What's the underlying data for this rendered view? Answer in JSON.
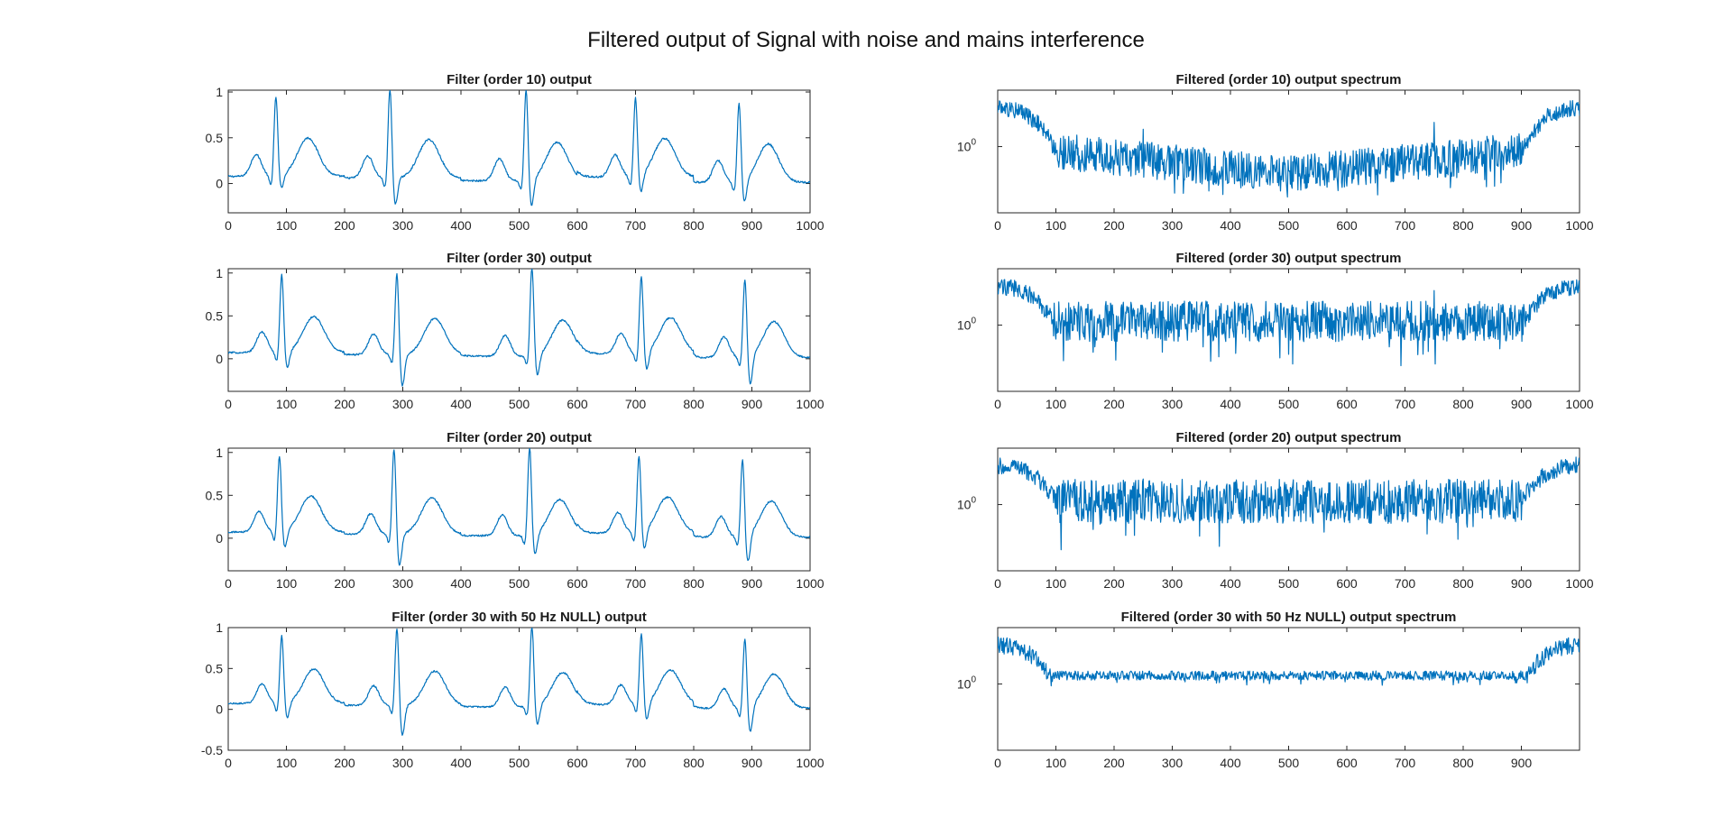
{
  "figure": {
    "title": "Filtered output of Signal with noise and mains interference"
  },
  "style": {
    "line_color": "#0072BD",
    "axis_color": "#262626",
    "background": "#ffffff"
  },
  "chart_data": [
    {
      "type": "line",
      "title": "Filter (order 10) output",
      "xlim": [
        0,
        1000
      ],
      "ylim": [
        -0.32,
        1.02
      ],
      "xticks": [
        0,
        100,
        200,
        300,
        400,
        500,
        600,
        700,
        800,
        900,
        1000
      ],
      "yticks": [
        0,
        0.5,
        1
      ],
      "ytick_labels": [
        "0",
        "0.5",
        "1"
      ],
      "beats": [
        {
          "r": 82,
          "amp": 0.88,
          "s": -0.15
        },
        {
          "r": 278,
          "amp": 0.99,
          "s": -0.3
        },
        {
          "r": 512,
          "amp": 1.02,
          "s": -0.3
        },
        {
          "r": 700,
          "amp": 0.87,
          "s": -0.2
        },
        {
          "r": 878,
          "amp": 0.87,
          "s": -0.25
        }
      ],
      "p_waves": [
        48,
        240,
        466,
        665,
        842
      ],
      "t_waves": [
        137,
        345,
        565,
        750,
        928
      ],
      "baseline": [
        0.13,
        0.1,
        0.05,
        0.12,
        0.02
      ]
    },
    {
      "type": "line",
      "title": "Filtered (order 10) output spectrum",
      "yscale": "log",
      "xlim": [
        0,
        1000
      ],
      "xticks": [
        0,
        100,
        200,
        300,
        400,
        500,
        600,
        700,
        800,
        900,
        1000
      ],
      "ytick_labels": [
        "10",
        "0"
      ],
      "spectrum": {
        "passband_edge": 100,
        "stop_level": 0.55,
        "bowl_depth": 0.35,
        "noise": 0.2,
        "spikes": [
          250,
          750
        ]
      }
    },
    {
      "type": "line",
      "title": "Filter (order 30) output",
      "xlim": [
        0,
        1000
      ],
      "ylim": [
        -0.38,
        1.05
      ],
      "xticks": [
        0,
        100,
        200,
        300,
        400,
        500,
        600,
        700,
        800,
        900,
        1000
      ],
      "yticks": [
        0,
        0.5,
        1
      ],
      "ytick_labels": [
        "0",
        "0.5",
        "1"
      ],
      "beats": [
        {
          "r": 92,
          "amp": 0.92,
          "s": -0.2
        },
        {
          "r": 290,
          "amp": 0.97,
          "s": -0.38
        },
        {
          "r": 522,
          "amp": 1.05,
          "s": -0.25
        },
        {
          "r": 710,
          "amp": 0.9,
          "s": -0.22
        },
        {
          "r": 888,
          "amp": 0.93,
          "s": -0.35
        }
      ],
      "p_waves": [
        58,
        250,
        476,
        675,
        852
      ],
      "t_waves": [
        147,
        355,
        575,
        760,
        938
      ],
      "baseline": [
        0.12,
        0.08,
        0.05,
        0.1,
        0.02
      ]
    },
    {
      "type": "line",
      "title": "Filtered (order 30) output spectrum",
      "yscale": "log",
      "xlim": [
        0,
        1000
      ],
      "xticks": [
        0,
        100,
        200,
        300,
        400,
        500,
        600,
        700,
        800,
        900,
        1000
      ],
      "ytick_labels": [
        "10",
        "0"
      ],
      "spectrum": {
        "passband_edge": 95,
        "stop_level": 0.62,
        "bowl_depth": 0.0,
        "noise": 0.22,
        "spikes": [
          250,
          750
        ]
      }
    },
    {
      "type": "line",
      "title": "Filter (order 20) output",
      "xlim": [
        0,
        1000
      ],
      "ylim": [
        -0.38,
        1.05
      ],
      "xticks": [
        0,
        100,
        200,
        300,
        400,
        500,
        600,
        700,
        800,
        900,
        1000
      ],
      "yticks": [
        0,
        0.5,
        1
      ],
      "ytick_labels": [
        "0",
        "0.5",
        "1"
      ],
      "beats": [
        {
          "r": 88,
          "amp": 0.9,
          "s": -0.2
        },
        {
          "r": 285,
          "amp": 1.02,
          "s": -0.38
        },
        {
          "r": 518,
          "amp": 1.04,
          "s": -0.25
        },
        {
          "r": 706,
          "amp": 0.9,
          "s": -0.22
        },
        {
          "r": 884,
          "amp": 0.92,
          "s": -0.33
        }
      ],
      "p_waves": [
        53,
        245,
        471,
        670,
        847
      ],
      "t_waves": [
        142,
        350,
        570,
        755,
        933
      ],
      "baseline": [
        0.12,
        0.08,
        0.05,
        0.1,
        0.02
      ]
    },
    {
      "type": "line",
      "title": "Filtered (order 20) output spectrum",
      "yscale": "log",
      "xlim": [
        0,
        1000
      ],
      "xticks": [
        0,
        100,
        200,
        300,
        400,
        500,
        600,
        700,
        800,
        900,
        1000
      ],
      "ytick_labels": [
        "10",
        "0"
      ],
      "spectrum": {
        "passband_edge": 100,
        "stop_level": 0.62,
        "bowl_depth": 0.0,
        "noise": 0.24,
        "spikes": [
          250,
          750
        ]
      }
    },
    {
      "type": "line",
      "title": "Filter (order 30 with 50 Hz NULL) output",
      "xlim": [
        0,
        1000
      ],
      "ylim": [
        -0.5,
        1
      ],
      "xticks": [
        0,
        100,
        200,
        300,
        400,
        500,
        600,
        700,
        800,
        900,
        1000
      ],
      "yticks": [
        -0.5,
        0,
        0.5,
        1
      ],
      "ytick_labels": [
        "-0.5",
        "0",
        "0.5",
        "1"
      ],
      "beats": [
        {
          "r": 92,
          "amp": 0.84,
          "s": -0.2
        },
        {
          "r": 290,
          "amp": 0.97,
          "s": -0.38
        },
        {
          "r": 522,
          "amp": 1.0,
          "s": -0.25
        },
        {
          "r": 710,
          "amp": 0.87,
          "s": -0.22
        },
        {
          "r": 888,
          "amp": 0.87,
          "s": -0.33
        }
      ],
      "p_waves": [
        58,
        250,
        476,
        675,
        852
      ],
      "t_waves": [
        147,
        355,
        575,
        760,
        938
      ],
      "baseline": [
        0.12,
        0.08,
        0.05,
        0.1,
        0.02
      ]
    },
    {
      "type": "line",
      "title": "Filtered (order 30 with 50 Hz NULL) output spectrum",
      "yscale": "log",
      "xlim": [
        0,
        1000
      ],
      "xticks": [
        0,
        100,
        200,
        300,
        400,
        500,
        600,
        700,
        800,
        900
      ],
      "ytick_labels": [
        "10",
        "0"
      ],
      "spectrum": {
        "passband_edge": 95,
        "stop_level": 0.62,
        "bowl_depth": 0.0,
        "noise": 0.05,
        "spikes": []
      }
    }
  ]
}
